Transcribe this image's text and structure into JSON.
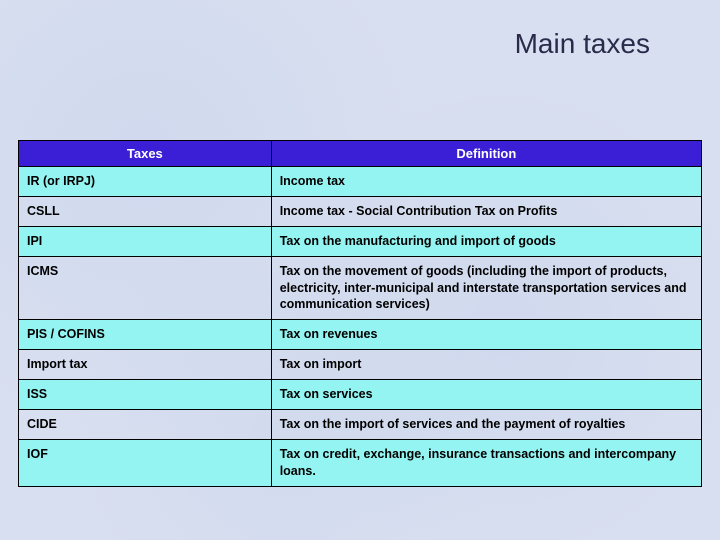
{
  "title": "Main taxes",
  "title_fontsize": 28,
  "title_color": "#2a2a4a",
  "background_color": "#d8dff0",
  "table": {
    "type": "table",
    "header_bg": "#3a1fd6",
    "header_fg": "#ffffff",
    "border_color": "#000000",
    "alt_row_bg": "#94f4f2",
    "cell_font_weight": "bold",
    "cell_fontsize": 12.5,
    "header_fontsize": 13,
    "columns": [
      {
        "label": "Taxes",
        "width_pct": 37,
        "align": "center"
      },
      {
        "label": "Definition",
        "width_pct": 63,
        "align": "center"
      }
    ],
    "rows": [
      {
        "alt": true,
        "tax": "IR (or IRPJ)",
        "definition": "Income tax"
      },
      {
        "alt": false,
        "tax": "CSLL",
        "definition": "Income tax - Social Contribution Tax on Profits"
      },
      {
        "alt": true,
        "tax": "IPI",
        "definition": "Tax on the manufacturing and import of goods"
      },
      {
        "alt": false,
        "tax": "ICMS",
        "definition": "Tax on the movement of goods (including the import of products, electricity, inter-municipal and interstate transportation services and communication services)"
      },
      {
        "alt": true,
        "tax": "PIS / COFINS",
        "definition": "Tax on revenues"
      },
      {
        "alt": false,
        "tax": "Import tax",
        "definition": "Tax on import"
      },
      {
        "alt": true,
        "tax": "ISS",
        "definition": "Tax on services"
      },
      {
        "alt": false,
        "tax": "CIDE",
        "definition": "Tax on the import of services and the payment of royalties"
      },
      {
        "alt": true,
        "tax": "IOF",
        "definition": "Tax on credit, exchange, insurance transactions and intercompany loans."
      }
    ]
  }
}
